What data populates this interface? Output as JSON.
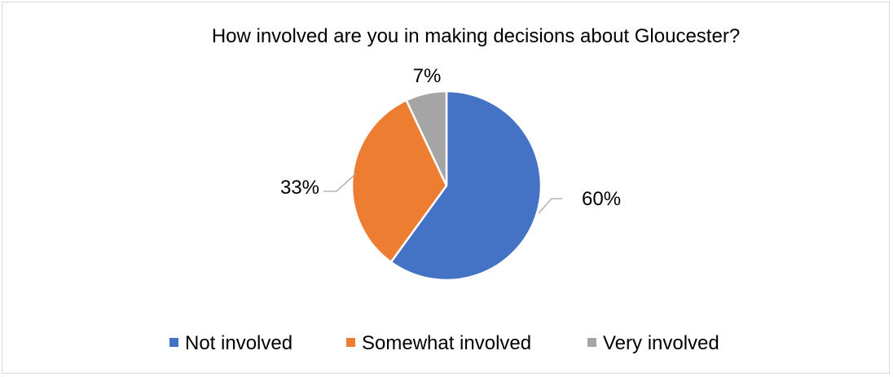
{
  "chart_data": {
    "type": "pie",
    "title": "How involved are you in making decisions about Gloucester?",
    "categories": [
      "Not involved",
      "Somewhat involved",
      "Very involved"
    ],
    "values": [
      60,
      33,
      7
    ],
    "value_labels": [
      "60%",
      "33%",
      "7%"
    ],
    "colors": [
      "#4472c4",
      "#ed7d31",
      "#a5a5a5"
    ],
    "legend_position": "bottom",
    "start_angle_deg": 0,
    "direction": "clockwise"
  }
}
